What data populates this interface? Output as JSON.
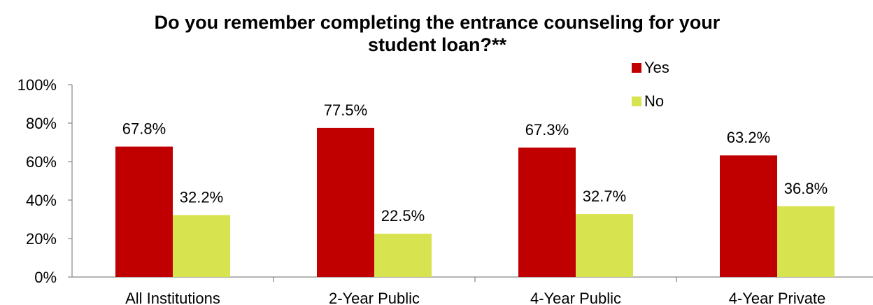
{
  "chart_data": {
    "type": "bar",
    "title_lines": [
      "Do you remember completing the entrance counseling for your",
      "student loan?**"
    ],
    "xlabel": "",
    "ylabel": "",
    "categories": [
      "All Institutions",
      "2-Year Public",
      "4-Year Public",
      "4-Year Private"
    ],
    "series": [
      {
        "name": "Yes",
        "values": [
          67.8,
          77.5,
          67.3,
          63.2
        ],
        "labels": [
          "67.8%",
          "77.5%",
          "67.3%",
          "63.2%"
        ],
        "color": "#c00000"
      },
      {
        "name": "No",
        "values": [
          32.2,
          22.5,
          32.7,
          36.8
        ],
        "labels": [
          "32.2%",
          "22.5%",
          "32.7%",
          "36.8%"
        ],
        "color": "#d7e34f"
      }
    ],
    "ylim": [
      0,
      100
    ],
    "yticks": [
      0,
      20,
      40,
      60,
      80,
      100
    ],
    "ytick_labels": [
      "0%",
      "20%",
      "40%",
      "60%",
      "80%",
      "100%"
    ],
    "grid": false,
    "legend_position": "top-right"
  }
}
